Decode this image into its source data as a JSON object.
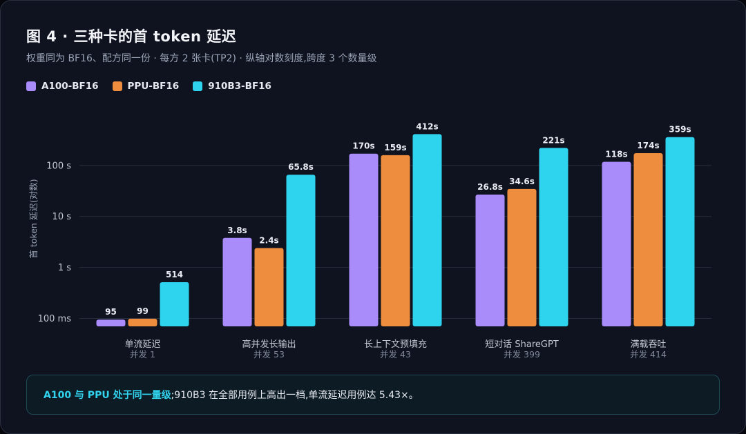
{
  "title": "图 4 · 三种卡的首 token 延迟",
  "subtitle": "权重同为 BF16、配方同一份 · 每方 2 张卡(TP2) · 纵轴对数刻度,跨度 3 个数量级",
  "colors": {
    "A100-BF16": "#a98bfa",
    "PPU-BF16": "#ef8d3e",
    "910B3-BF16": "#2ed3ee"
  },
  "chart_data": {
    "type": "bar",
    "yscale": "log",
    "ylim": [
      0.07,
      1200
    ],
    "ylabel": "首 token 延迟(对数)",
    "yticks": [
      {
        "value": 0.1,
        "label": "100 ms"
      },
      {
        "value": 1,
        "label": "1 s"
      },
      {
        "value": 10,
        "label": "10 s"
      },
      {
        "value": 100,
        "label": "100 s"
      }
    ],
    "categories": [
      {
        "name": "单流延迟",
        "sub": "并发 1"
      },
      {
        "name": "高并发长输出",
        "sub": "并发 53"
      },
      {
        "name": "长上下文预填充",
        "sub": "并发 43"
      },
      {
        "name": "短对话 ShareGPT",
        "sub": "并发 399"
      },
      {
        "name": "满载吞吐",
        "sub": "并发 414"
      }
    ],
    "series": [
      {
        "name": "A100-BF16",
        "values": [
          0.095,
          3.8,
          170,
          26.8,
          118
        ],
        "labels": [
          "95",
          "3.8s",
          "170s",
          "26.8s",
          "118s"
        ]
      },
      {
        "name": "PPU-BF16",
        "values": [
          0.099,
          2.4,
          159,
          34.6,
          174
        ],
        "labels": [
          "99",
          "2.4s",
          "159s",
          "34.6s",
          "174s"
        ]
      },
      {
        "name": "910B3-BF16",
        "values": [
          0.514,
          65.8,
          412,
          221,
          359
        ],
        "labels": [
          "514",
          "65.8s",
          "412s",
          "221s",
          "359s"
        ]
      }
    ]
  },
  "callout": {
    "highlight": "A100 与 PPU 处于同一量级",
    "text": ";910B3 在全部用例上高出一档,单流延迟用例达 5.43×。"
  }
}
